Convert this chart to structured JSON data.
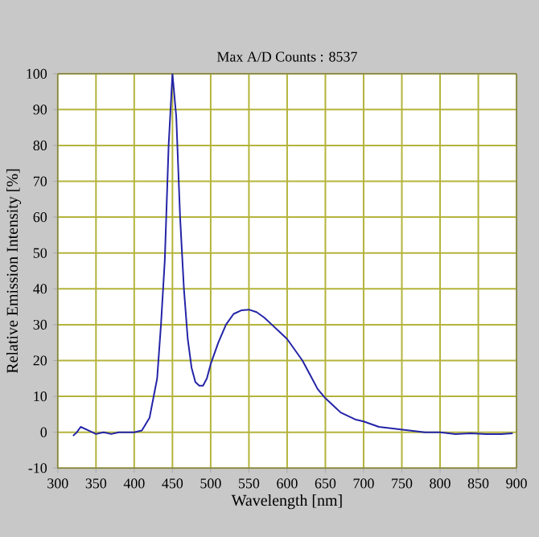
{
  "chart_data": {
    "type": "line",
    "title": "Max A/D Counts : 8537",
    "xlabel": "Wavelength [nm]",
    "ylabel": "Relative Emission Intensity [%]",
    "x": [
      320,
      325,
      330,
      340,
      350,
      360,
      370,
      380,
      390,
      400,
      410,
      420,
      430,
      435,
      440,
      445,
      450,
      455,
      460,
      465,
      470,
      475,
      480,
      485,
      490,
      495,
      500,
      510,
      520,
      530,
      540,
      550,
      560,
      570,
      580,
      590,
      600,
      610,
      620,
      630,
      640,
      650,
      660,
      670,
      680,
      690,
      700,
      720,
      740,
      760,
      780,
      800,
      820,
      840,
      860,
      880,
      895
    ],
    "series": [
      {
        "color": "#2424a8",
        "values": [
          -1,
          0,
          1.5,
          0.5,
          -0.5,
          0,
          -0.5,
          0,
          0,
          0,
          0.5,
          4,
          15,
          30,
          48,
          80,
          100,
          88,
          60,
          40,
          26,
          18,
          14,
          13,
          13,
          15,
          19,
          25,
          30,
          33,
          34,
          34.2,
          33.5,
          32,
          30,
          28,
          26,
          23,
          20,
          16,
          12,
          9.5,
          7.5,
          5.5,
          4.5,
          3.5,
          3,
          1.5,
          1,
          0.5,
          0,
          0,
          -0.5,
          -0.3,
          -0.5,
          -0.5,
          -0.3
        ]
      }
    ],
    "xlim": [
      300,
      900
    ],
    "ylim": [
      -10,
      100
    ],
    "xticks": [
      300,
      350,
      400,
      450,
      500,
      550,
      600,
      650,
      700,
      750,
      800,
      850,
      900
    ],
    "yticks": [
      -10,
      0,
      10,
      20,
      30,
      40,
      50,
      60,
      70,
      80,
      90,
      100
    ],
    "grid": true,
    "marker": "none",
    "line_style": "solid"
  }
}
